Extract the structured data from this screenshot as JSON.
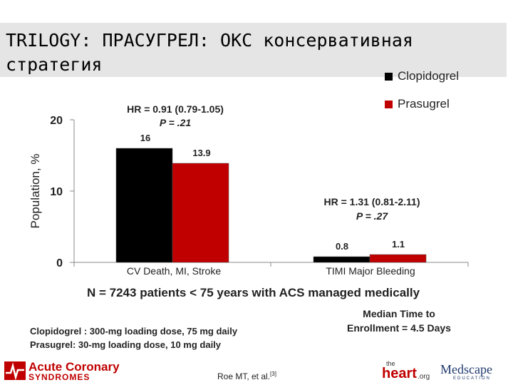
{
  "title": "TRILOGY: ПРАСУГРЕЛ: ОКС консервативная стратегия",
  "legend": [
    {
      "label": "Clopidogrel",
      "color": "#000000"
    },
    {
      "label": "Prasugrel",
      "color": "#c00000"
    }
  ],
  "chart_data": {
    "type": "bar",
    "ylabel": "Population, %",
    "ylim": [
      0,
      20
    ],
    "yticks": [
      "0",
      "10",
      "20"
    ],
    "categories": [
      "CV Death, MI, Stroke",
      "TIMI Major Bleeding"
    ],
    "series": [
      {
        "name": "Clopidogrel",
        "values": [
          16,
          0.8
        ],
        "labels": [
          "16",
          "0.8"
        ],
        "color": "#000000"
      },
      {
        "name": "Prasugrel",
        "values": [
          13.9,
          1.1
        ],
        "labels": [
          "13.9",
          "1.1"
        ],
        "color": "#c00000"
      }
    ],
    "annotations": [
      {
        "hr": "HR = 0.91 (0.79-1.05)",
        "p": "P = .21"
      },
      {
        "hr": "HR = 1.31 (0.81-2.11)",
        "p": "P = .27"
      }
    ],
    "grid": false,
    "legend_position": "top-right"
  },
  "notes": {
    "population": "N = 7243 patients < 75 years with ACS managed medically",
    "median_line1": "Median Time to",
    "median_line2": "Enrollment = 4.5 Days",
    "dose_clopidogrel": "Clopidogrel : 300-mg loading dose, 75 mg daily",
    "dose_prasugrel": "Prasugrel: 30-mg loading dose, 10 mg daily"
  },
  "footer": {
    "logo_acs_line1": "Acute Coronary",
    "logo_acs_line2": "SYNDROMES",
    "citation": "Roe MT, et al.",
    "citation_ref": "[3]",
    "logo_heart_small": "the",
    "logo_heart_main": "heart",
    "logo_heart_suffix": ".org",
    "logo_medscape": "Medscape",
    "logo_medscape_sub": "EDUCATION"
  }
}
